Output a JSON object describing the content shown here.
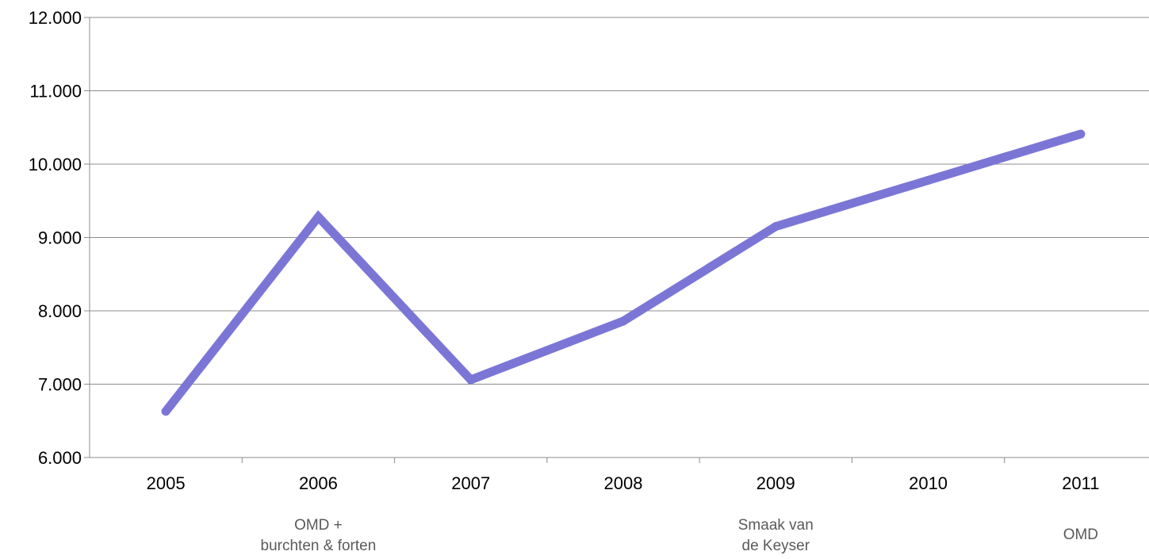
{
  "chart_data": {
    "type": "line",
    "categories": [
      "2005",
      "2006",
      "2007",
      "2008",
      "2009",
      "2010",
      "2011"
    ],
    "series": [
      {
        "values": [
          6630,
          9280,
          7060,
          7860,
          9150,
          9780,
          10410
        ]
      }
    ],
    "ylim": [
      6000,
      12000
    ],
    "yticks": [
      6000,
      7000,
      8000,
      9000,
      10000,
      11000,
      12000
    ],
    "ytick_labels": [
      "6.000",
      "7.000",
      "8.000",
      "9.000",
      "10.000",
      "11.000",
      "12.000"
    ],
    "grid": "horizontal",
    "line_color": "#7b76d6",
    "annotations": [
      {
        "category": "2006",
        "lines": [
          "OMD +",
          "burchten & forten"
        ]
      },
      {
        "category": "2009",
        "lines": [
          "Smaak van",
          "de Keyser"
        ]
      },
      {
        "category": "2011",
        "lines": [
          "OMD"
        ]
      }
    ]
  }
}
